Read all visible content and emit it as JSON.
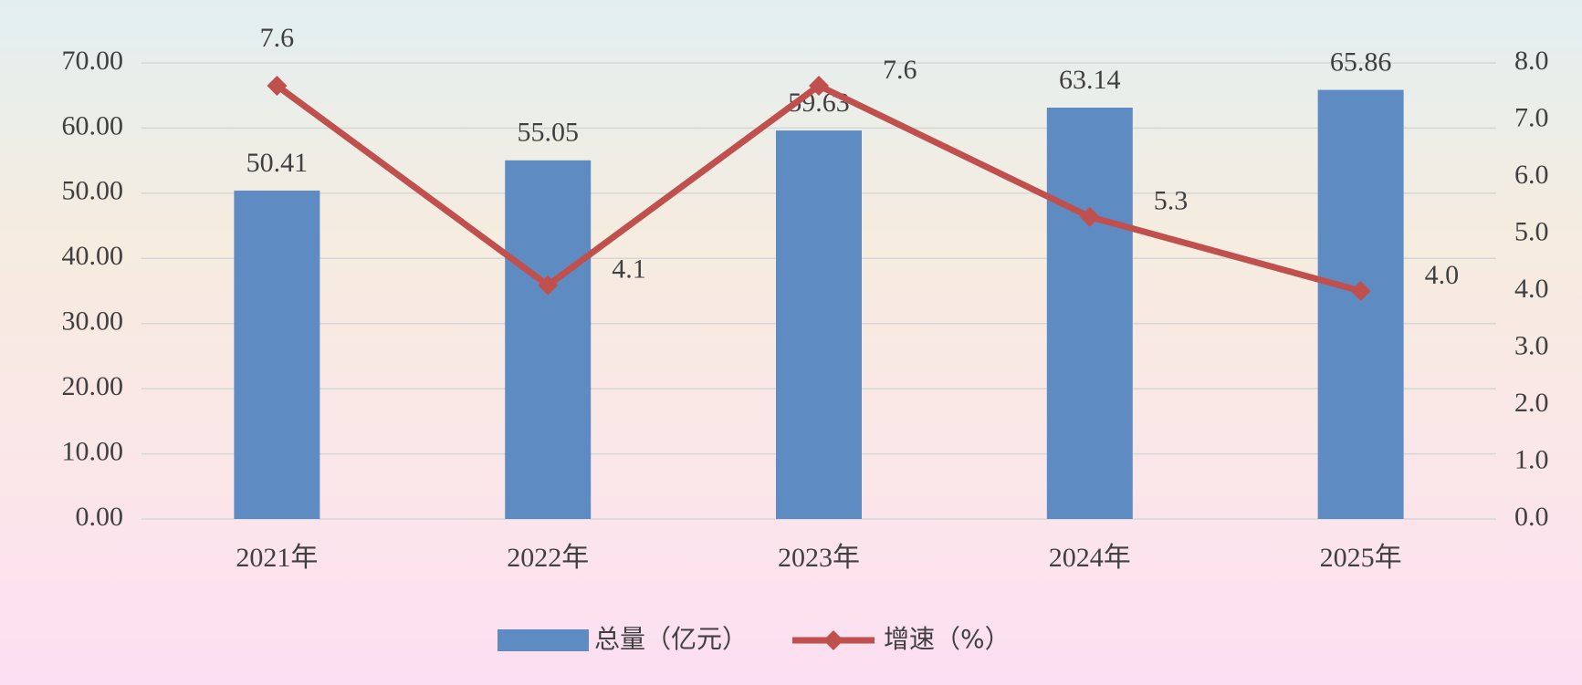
{
  "chart_data": {
    "type": "bar",
    "categories": [
      "2021年",
      "2022年",
      "2023年",
      "2024年",
      "2025年"
    ],
    "series": [
      {
        "name": "总量（亿元）",
        "type": "bar",
        "color": "#5f8bc3",
        "values": [
          50.41,
          55.05,
          59.63,
          63.14,
          65.86
        ]
      },
      {
        "name": "增速（%）",
        "type": "line",
        "axis": "y2",
        "color": "#c0504d",
        "values": [
          7.6,
          4.1,
          7.6,
          5.3,
          4.0
        ],
        "value_labels": [
          "7.6",
          "4.1",
          "7.6",
          "5.3",
          "4.0"
        ]
      }
    ],
    "ylim": [
      0,
      70
    ],
    "yticks": [
      {
        "value": 0,
        "label": "0.00"
      },
      {
        "value": 10,
        "label": "10.00"
      },
      {
        "value": 20,
        "label": "20.00"
      },
      {
        "value": 30,
        "label": "30.00"
      },
      {
        "value": 40,
        "label": "40.00"
      },
      {
        "value": 50,
        "label": "50.00"
      },
      {
        "value": 60,
        "label": "60.00"
      },
      {
        "value": 70,
        "label": "70.00"
      }
    ],
    "y2lim": [
      0,
      8
    ],
    "y2ticks": [
      {
        "value": 0,
        "label": "0.0"
      },
      {
        "value": 1,
        "label": "1.0"
      },
      {
        "value": 2,
        "label": "2.0"
      },
      {
        "value": 3,
        "label": "3.0"
      },
      {
        "value": 4,
        "label": "4.0"
      },
      {
        "value": 5,
        "label": "5.0"
      },
      {
        "value": 6,
        "label": "6.0"
      },
      {
        "value": 7,
        "label": "7.0"
      },
      {
        "value": 8,
        "label": "8.0"
      }
    ],
    "grid": true,
    "legend": "bottom"
  }
}
